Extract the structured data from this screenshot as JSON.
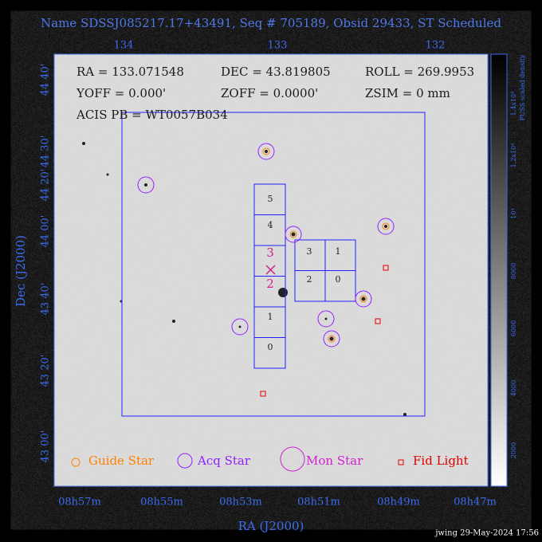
{
  "title": "Name SDSSJ085217.17+43491, Seq # 705189, Obsid 29433, ST Scheduled",
  "top_axis": [
    "134",
    "133",
    "132"
  ],
  "bottom_axis": [
    "08h57m",
    "08h55m",
    "08h53m",
    "08h51m",
    "08h49m",
    "08h47m"
  ],
  "left_axis": [
    "44 40'",
    "44 30'",
    "44 20'",
    "44 00'",
    "43 40'",
    "43 20'",
    "43 00'"
  ],
  "x_axis_title": "RA (J2000)",
  "y_axis_title": "Dec (J2000)",
  "colorbar": {
    "title": "PUSS scaled density",
    "labels": [
      "2000",
      "4000",
      "6000",
      "8000",
      "10⁴",
      "1.2x10⁴",
      "1.4x10⁴"
    ]
  },
  "info": [
    "RA = 133.071548",
    "DEC = 43.819805",
    "ROLL = 269.9953",
    "YOFF =   0.000'",
    "ZOFF =  0.0000'",
    "ZSIM = 0 mm",
    "ACIS PB = WT0057B034"
  ],
  "ccd_column": [
    "5",
    "4",
    "3",
    "2",
    "1",
    "0"
  ],
  "ccd_grid": [
    "3",
    "1",
    "2",
    "0"
  ],
  "legend": [
    "Guide Star",
    "Acq Star",
    "Mon Star",
    "Fid Light"
  ],
  "footer": "jwing 29-May-2024 17:56"
}
